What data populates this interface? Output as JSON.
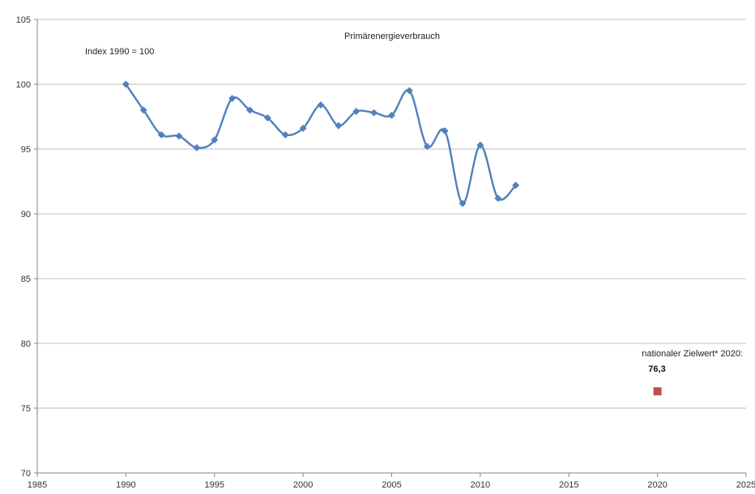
{
  "chart_data": {
    "type": "scatter",
    "title": "Primärenergieverbrauch",
    "subtitle": "Index 1990 = 100",
    "xlim": [
      1985,
      2025
    ],
    "ylim": [
      70,
      105
    ],
    "x_ticks": [
      "1985",
      "1990",
      "1995",
      "2000",
      "2005",
      "2010",
      "2015",
      "2020",
      "2025"
    ],
    "y_ticks": [
      "70",
      "75",
      "80",
      "85",
      "90",
      "95",
      "100",
      "105"
    ],
    "grid": "horizontal",
    "series": [
      {
        "style": "smoothed line with diamond markers",
        "color": "#4f81bd",
        "x": [
          1990,
          1991,
          1992,
          1993,
          1994,
          1995,
          1996,
          1997,
          1998,
          1999,
          2000,
          2001,
          2002,
          2003,
          2004,
          2005,
          2006,
          2007,
          2008,
          2009,
          2010,
          2011,
          2012
        ],
        "y": [
          100.0,
          98.0,
          96.1,
          96.0,
          95.1,
          95.7,
          98.9,
          98.0,
          97.4,
          96.1,
          96.6,
          98.4,
          96.8,
          97.9,
          97.8,
          97.6,
          99.5,
          95.2,
          96.4,
          90.8,
          95.3,
          91.2,
          92.2
        ]
      },
      {
        "style": "square marker",
        "color": "#c0504d",
        "x": [
          2020
        ],
        "y": [
          76.3
        ]
      }
    ],
    "annotation": {
      "label": "nationaler Zielwert* 2020:",
      "value": "76,3"
    }
  }
}
